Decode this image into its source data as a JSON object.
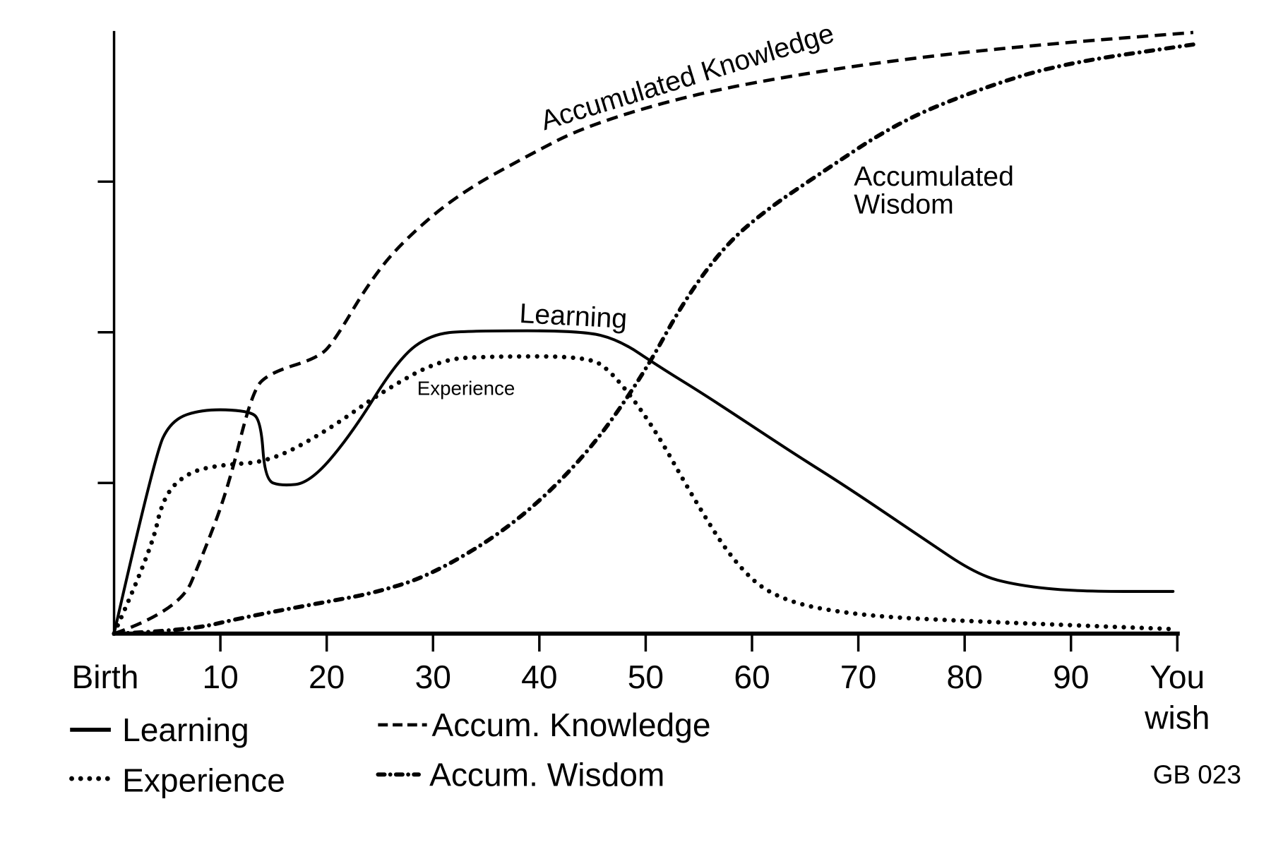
{
  "chart_data": {
    "type": "line",
    "title": "",
    "xlabel": "",
    "ylabel": "",
    "xlim": [
      0,
      100
    ],
    "ylim": [
      0,
      4
    ],
    "grid": false,
    "legend_position": "bottom-left",
    "x_ticks": [
      {
        "value": 0,
        "label": "Birth"
      },
      {
        "value": 10,
        "label": "10"
      },
      {
        "value": 20,
        "label": "20"
      },
      {
        "value": 30,
        "label": "30"
      },
      {
        "value": 40,
        "label": "40"
      },
      {
        "value": 50,
        "label": "50"
      },
      {
        "value": 60,
        "label": "60"
      },
      {
        "value": 70,
        "label": "70"
      },
      {
        "value": 80,
        "label": "80"
      },
      {
        "value": 90,
        "label": "90"
      },
      {
        "value": 100,
        "label": "You wish"
      }
    ],
    "y_ticks": [
      1,
      2,
      3
    ],
    "series": [
      {
        "name": "Learning",
        "style": "solid",
        "x": [
          0,
          3.8,
          5.4,
          8.4,
          12.6,
          13.8,
          14.2,
          15.7,
          18.4,
          22.2,
          26.8,
          29.9,
          33.7,
          44,
          47.5,
          51.3,
          55.9,
          63.6,
          69,
          75.9,
          81.2,
          85,
          90.4,
          99.6
        ],
        "y": [
          0,
          1.18,
          1.42,
          1.49,
          1.48,
          1.42,
          1.02,
          0.98,
          1.0,
          1.31,
          1.83,
          1.99,
          2.01,
          2.01,
          1.95,
          1.77,
          1.57,
          1.21,
          0.97,
          0.64,
          0.39,
          0.32,
          0.28,
          0.28
        ]
      },
      {
        "name": "Experience",
        "style": "dotted",
        "x": [
          0,
          3.5,
          4.6,
          6.9,
          10,
          14.6,
          19.9,
          25.3,
          30.7,
          35.2,
          44.4,
          46.7,
          50.6,
          54.4,
          58.2,
          62.1,
          69.7,
          81.2,
          99.6
        ],
        "y": [
          0,
          0.55,
          0.91,
          1.07,
          1.12,
          1.14,
          1.34,
          1.61,
          1.82,
          1.84,
          1.84,
          1.75,
          1.39,
          0.91,
          0.48,
          0.23,
          0.12,
          0.08,
          0.03
        ]
      },
      {
        "name": "Accum. Knowledge",
        "style": "dashed",
        "x": [
          0,
          6.1,
          8.4,
          10.7,
          13,
          14.6,
          19.2,
          20.7,
          23.8,
          26.8,
          32.2,
          39.1,
          44.4,
          54.4,
          65.9,
          77.4,
          88.9,
          101.5
        ],
        "y": [
          0,
          0.15,
          0.53,
          0.96,
          1.61,
          1.73,
          1.83,
          1.94,
          2.31,
          2.58,
          2.91,
          3.18,
          3.37,
          3.58,
          3.73,
          3.84,
          3.92,
          3.99
        ]
      },
      {
        "name": "Accum. Wisdom",
        "style": "dash-dot",
        "x": [
          0,
          6.9,
          12.3,
          19.9,
          24.5,
          29.9,
          37.6,
          44.4,
          49.8,
          53.6,
          57.5,
          61.3,
          65.9,
          73.6,
          81.2,
          88.9,
          101.5
        ],
        "y": [
          0,
          0.02,
          0.11,
          0.21,
          0.27,
          0.39,
          0.72,
          1.18,
          1.72,
          2.21,
          2.58,
          2.81,
          3.03,
          3.39,
          3.61,
          3.78,
          3.91
        ]
      }
    ],
    "annotations": {
      "knowledge": "Accumulated Knowledge",
      "wisdom_line1": "Accumulated",
      "wisdom_line2": "Wisdom",
      "learning": "Learning",
      "experience": "Experience"
    },
    "credit": "GB 023"
  }
}
